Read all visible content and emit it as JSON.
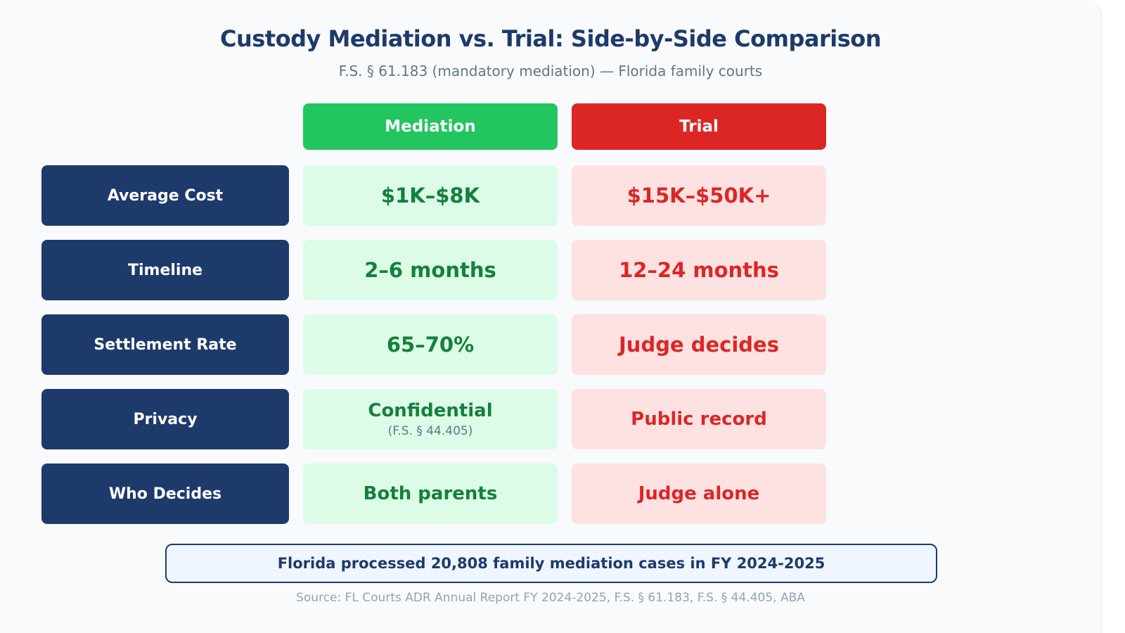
{
  "title": "Custody Mediation vs. Trial: Side-by-Side Comparison",
  "subtitle": "F.S. § 61.183 (mandatory mediation) — Florida family courts",
  "columns": {
    "mediation": "Mediation",
    "trial": "Trial"
  },
  "rows": [
    {
      "label": "Average Cost",
      "mediation": "$1K–$8K",
      "trial": "$15K–$50K+"
    },
    {
      "label": "Timeline",
      "mediation": "2–6 months",
      "trial": "12–24 months"
    },
    {
      "label": "Settlement Rate",
      "mediation": "65–70%",
      "trial": "Judge decides"
    },
    {
      "label": "Privacy",
      "mediation": "Confidential",
      "mediation_note": "(F.S. § 44.405)",
      "trial": "Public record"
    },
    {
      "label": "Who Decides",
      "mediation": "Both parents",
      "trial": "Judge alone"
    }
  ],
  "banner": "Florida processed 20,808 family mediation cases in FY 2024-2025",
  "source": "Source: FL Courts ADR Annual Report FY 2024-2025, F.S. § 61.183, F.S. § 44.405, ABA",
  "colors": {
    "navy": "#1e3a6b",
    "mediation_header": "#22c55e",
    "trial_header": "#dc2626",
    "mediation_cell": "#dcfce7",
    "trial_cell": "#fee2e2",
    "mediation_text": "#15803d",
    "trial_text": "#dc2626"
  }
}
